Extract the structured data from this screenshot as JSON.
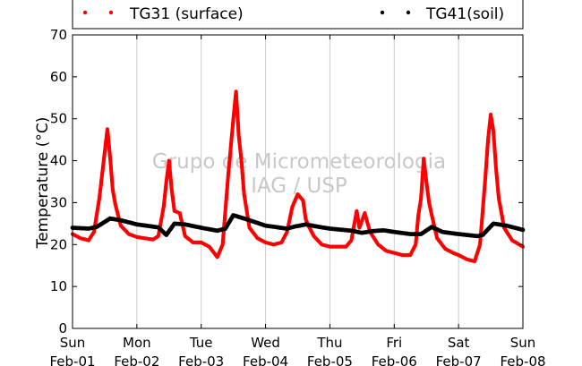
{
  "watermark": {
    "line1": "Grupo de Micrometeorologia",
    "line2": "IAG / USP"
  },
  "chart_data": {
    "type": "scatter",
    "ylabel": "Temperature (°C)",
    "xlabel": "",
    "ylim": [
      0,
      70
    ],
    "yticks": [
      0,
      10,
      20,
      30,
      40,
      50,
      60,
      70
    ],
    "xlim": [
      "2015-02-01T00:00",
      "2015-02-08T00:00"
    ],
    "xticks": [
      {
        "day": "Sun",
        "date": "Feb-01"
      },
      {
        "day": "Mon",
        "date": "Feb-02"
      },
      {
        "day": "Tue",
        "date": "Feb-03"
      },
      {
        "day": "Wed",
        "date": "Feb-04"
      },
      {
        "day": "Thu",
        "date": "Feb-05"
      },
      {
        "day": "Fri",
        "date": "Feb-06"
      },
      {
        "day": "Sat",
        "date": "Feb-07"
      },
      {
        "day": "Sun",
        "date": "Feb-08"
      }
    ],
    "grid": "vertical",
    "legend": "top",
    "series": [
      {
        "name": "TG31 (surface)",
        "color": "#ff0000",
        "marker": "dot",
        "points": [
          [
            "2015-02-01T00:00",
            22.5
          ],
          [
            "2015-02-01T03:00",
            21.5
          ],
          [
            "2015-02-01T06:00",
            21.0
          ],
          [
            "2015-02-01T08:00",
            23.0
          ],
          [
            "2015-02-01T10:00",
            31.0
          ],
          [
            "2015-02-01T12:00",
            42.0
          ],
          [
            "2015-02-01T13:00",
            47.5
          ],
          [
            "2015-02-01T14:00",
            41.0
          ],
          [
            "2015-02-01T15:00",
            33.0
          ],
          [
            "2015-02-01T16:00",
            29.5
          ],
          [
            "2015-02-01T18:00",
            24.5
          ],
          [
            "2015-02-01T21:00",
            22.5
          ],
          [
            "2015-02-02T00:00",
            21.8
          ],
          [
            "2015-02-02T03:00",
            21.5
          ],
          [
            "2015-02-02T06:00",
            21.2
          ],
          [
            "2015-02-02T08:00",
            22.0
          ],
          [
            "2015-02-02T10:00",
            29.0
          ],
          [
            "2015-02-02T11:00",
            35.0
          ],
          [
            "2015-02-02T12:00",
            40.0
          ],
          [
            "2015-02-02T13:00",
            33.0
          ],
          [
            "2015-02-02T14:00",
            28.0
          ],
          [
            "2015-02-02T16:00",
            27.5
          ],
          [
            "2015-02-02T18:00",
            22.0
          ],
          [
            "2015-02-02T21:00",
            20.5
          ],
          [
            "2015-02-03T00:00",
            20.5
          ],
          [
            "2015-02-03T03:00",
            19.5
          ],
          [
            "2015-02-03T06:00",
            17.0
          ],
          [
            "2015-02-03T08:00",
            20.0
          ],
          [
            "2015-02-03T10:00",
            36.0
          ],
          [
            "2015-02-03T12:00",
            50.0
          ],
          [
            "2015-02-03T13:00",
            56.5
          ],
          [
            "2015-02-03T14:00",
            46.0
          ],
          [
            "2015-02-03T15:00",
            40.0
          ],
          [
            "2015-02-03T16:00",
            32.0
          ],
          [
            "2015-02-03T18:00",
            24.0
          ],
          [
            "2015-02-03T21:00",
            21.5
          ],
          [
            "2015-02-04T00:00",
            20.5
          ],
          [
            "2015-02-04T03:00",
            20.0
          ],
          [
            "2015-02-04T06:00",
            20.5
          ],
          [
            "2015-02-04T08:00",
            23.0
          ],
          [
            "2015-02-04T10:00",
            29.0
          ],
          [
            "2015-02-04T12:00",
            32.0
          ],
          [
            "2015-02-04T14:00",
            30.5
          ],
          [
            "2015-02-04T15:00",
            26.0
          ],
          [
            "2015-02-04T16:00",
            24.5
          ],
          [
            "2015-02-04T18:00",
            22.0
          ],
          [
            "2015-02-04T21:00",
            20.0
          ],
          [
            "2015-02-05T00:00",
            19.5
          ],
          [
            "2015-02-05T03:00",
            19.5
          ],
          [
            "2015-02-05T06:00",
            19.5
          ],
          [
            "2015-02-05T08:00",
            21.0
          ],
          [
            "2015-02-05T10:00",
            28.0
          ],
          [
            "2015-02-05T11:00",
            24.0
          ],
          [
            "2015-02-05T13:00",
            27.5
          ],
          [
            "2015-02-05T15:00",
            23.0
          ],
          [
            "2015-02-05T18:00",
            20.0
          ],
          [
            "2015-02-05T21:00",
            18.5
          ],
          [
            "2015-02-06T00:00",
            18.0
          ],
          [
            "2015-02-06T03:00",
            17.5
          ],
          [
            "2015-02-06T06:00",
            17.5
          ],
          [
            "2015-02-06T08:00",
            20.0
          ],
          [
            "2015-02-06T09:00",
            27.0
          ],
          [
            "2015-02-06T10:00",
            31.0
          ],
          [
            "2015-02-06T11:00",
            40.5
          ],
          [
            "2015-02-06T12:00",
            35.0
          ],
          [
            "2015-02-06T13:00",
            30.0
          ],
          [
            "2015-02-06T14:00",
            27.0
          ],
          [
            "2015-02-06T16:00",
            21.5
          ],
          [
            "2015-02-06T19:00",
            19.0
          ],
          [
            "2015-02-06T22:00",
            18.0
          ],
          [
            "2015-02-07T00:00",
            17.5
          ],
          [
            "2015-02-07T03:00",
            16.5
          ],
          [
            "2015-02-07T06:00",
            16.0
          ],
          [
            "2015-02-07T08:00",
            20.0
          ],
          [
            "2015-02-07T09:00",
            28.0
          ],
          [
            "2015-02-07T10:00",
            36.0
          ],
          [
            "2015-02-07T11:00",
            45.0
          ],
          [
            "2015-02-07T12:00",
            51.0
          ],
          [
            "2015-02-07T13:00",
            47.0
          ],
          [
            "2015-02-07T14:00",
            38.0
          ],
          [
            "2015-02-07T15:00",
            31.0
          ],
          [
            "2015-02-07T17:00",
            24.0
          ],
          [
            "2015-02-07T20:00",
            21.0
          ],
          [
            "2015-02-07T23:59",
            19.5
          ]
        ]
      },
      {
        "name": "TG41(soil)",
        "color": "#000000",
        "marker": "dot",
        "points": [
          [
            "2015-02-01T00:00",
            24.0
          ],
          [
            "2015-02-01T06:00",
            23.8
          ],
          [
            "2015-02-01T09:00",
            24.2
          ],
          [
            "2015-02-01T14:00",
            26.2
          ],
          [
            "2015-02-01T18:00",
            25.8
          ],
          [
            "2015-02-02T00:00",
            24.8
          ],
          [
            "2015-02-02T08:00",
            24.1
          ],
          [
            "2015-02-02T11:00",
            22.3
          ],
          [
            "2015-02-02T14:00",
            25.0
          ],
          [
            "2015-02-02T18:00",
            24.8
          ],
          [
            "2015-02-03T00:00",
            24.0
          ],
          [
            "2015-02-03T06:00",
            23.3
          ],
          [
            "2015-02-03T09:00",
            23.8
          ],
          [
            "2015-02-03T12:00",
            27.0
          ],
          [
            "2015-02-03T16:00",
            26.2
          ],
          [
            "2015-02-04T00:00",
            24.5
          ],
          [
            "2015-02-04T08:00",
            23.8
          ],
          [
            "2015-02-04T11:00",
            24.3
          ],
          [
            "2015-02-04T15:00",
            24.8
          ],
          [
            "2015-02-04T20:00",
            24.2
          ],
          [
            "2015-02-05T00:00",
            23.8
          ],
          [
            "2015-02-05T08:00",
            23.3
          ],
          [
            "2015-02-05T12:00",
            22.8
          ],
          [
            "2015-02-05T16:00",
            23.2
          ],
          [
            "2015-02-05T20:00",
            23.4
          ],
          [
            "2015-02-06T00:00",
            23.0
          ],
          [
            "2015-02-06T06:00",
            22.5
          ],
          [
            "2015-02-06T10:00",
            22.5
          ],
          [
            "2015-02-06T14:00",
            24.2
          ],
          [
            "2015-02-06T18:00",
            23.0
          ],
          [
            "2015-02-07T00:00",
            22.5
          ],
          [
            "2015-02-07T07:00",
            22.0
          ],
          [
            "2015-02-07T09:00",
            22.3
          ],
          [
            "2015-02-07T13:00",
            25.0
          ],
          [
            "2015-02-07T18:00",
            24.5
          ],
          [
            "2015-02-07T23:59",
            23.5
          ]
        ]
      }
    ]
  }
}
